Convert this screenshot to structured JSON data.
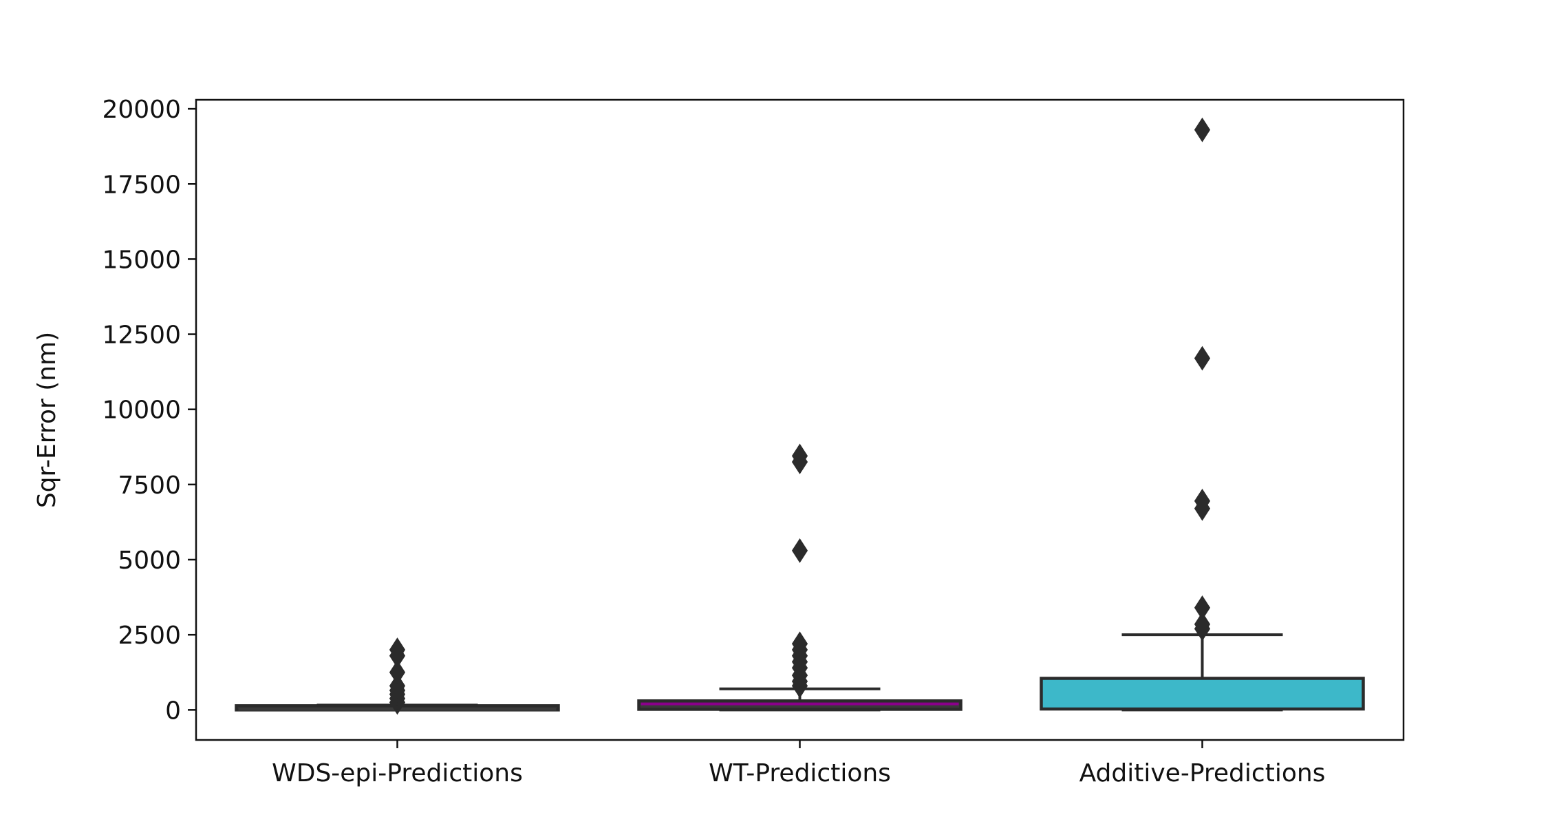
{
  "chart_data": {
    "type": "box",
    "title": "",
    "xlabel": "",
    "ylabel": "Sqr-Error (nm)",
    "ylim": [
      -1000,
      20300
    ],
    "yticks": [
      0,
      2500,
      5000,
      7500,
      10000,
      12500,
      15000,
      17500,
      20000
    ],
    "grid": false,
    "categories": [
      "WDS-epi-Predictions",
      "WT-Predictions",
      "Additive-Predictions"
    ],
    "boxes": [
      {
        "name": "WDS-epi-Predictions",
        "color": "#3a3a3a",
        "median_color": "#3a3a3a",
        "whisker_low": 0,
        "q1": 0,
        "median": 20,
        "q3": 80,
        "whisker_high": 160,
        "outliers": [
          250,
          380,
          520,
          650,
          800,
          1250,
          1800,
          2000
        ]
      },
      {
        "name": "WT-Predictions",
        "color": "#3a3a3a",
        "median_color": "#8b008b",
        "whisker_low": 0,
        "q1": 20,
        "median": 200,
        "q3": 300,
        "whisker_high": 700,
        "outliers": [
          800,
          950,
          1150,
          1400,
          1600,
          1800,
          2000,
          2200,
          5300,
          8250,
          8450
        ]
      },
      {
        "name": "Additive-Predictions",
        "color": "#3db8c9",
        "median_color": "#3db8c9",
        "whisker_low": 0,
        "q1": 30,
        "median": 150,
        "q3": 1050,
        "whisker_high": 2500,
        "outliers": [
          2700,
          2850,
          3400,
          6700,
          6950,
          11700,
          19300
        ]
      }
    ]
  }
}
